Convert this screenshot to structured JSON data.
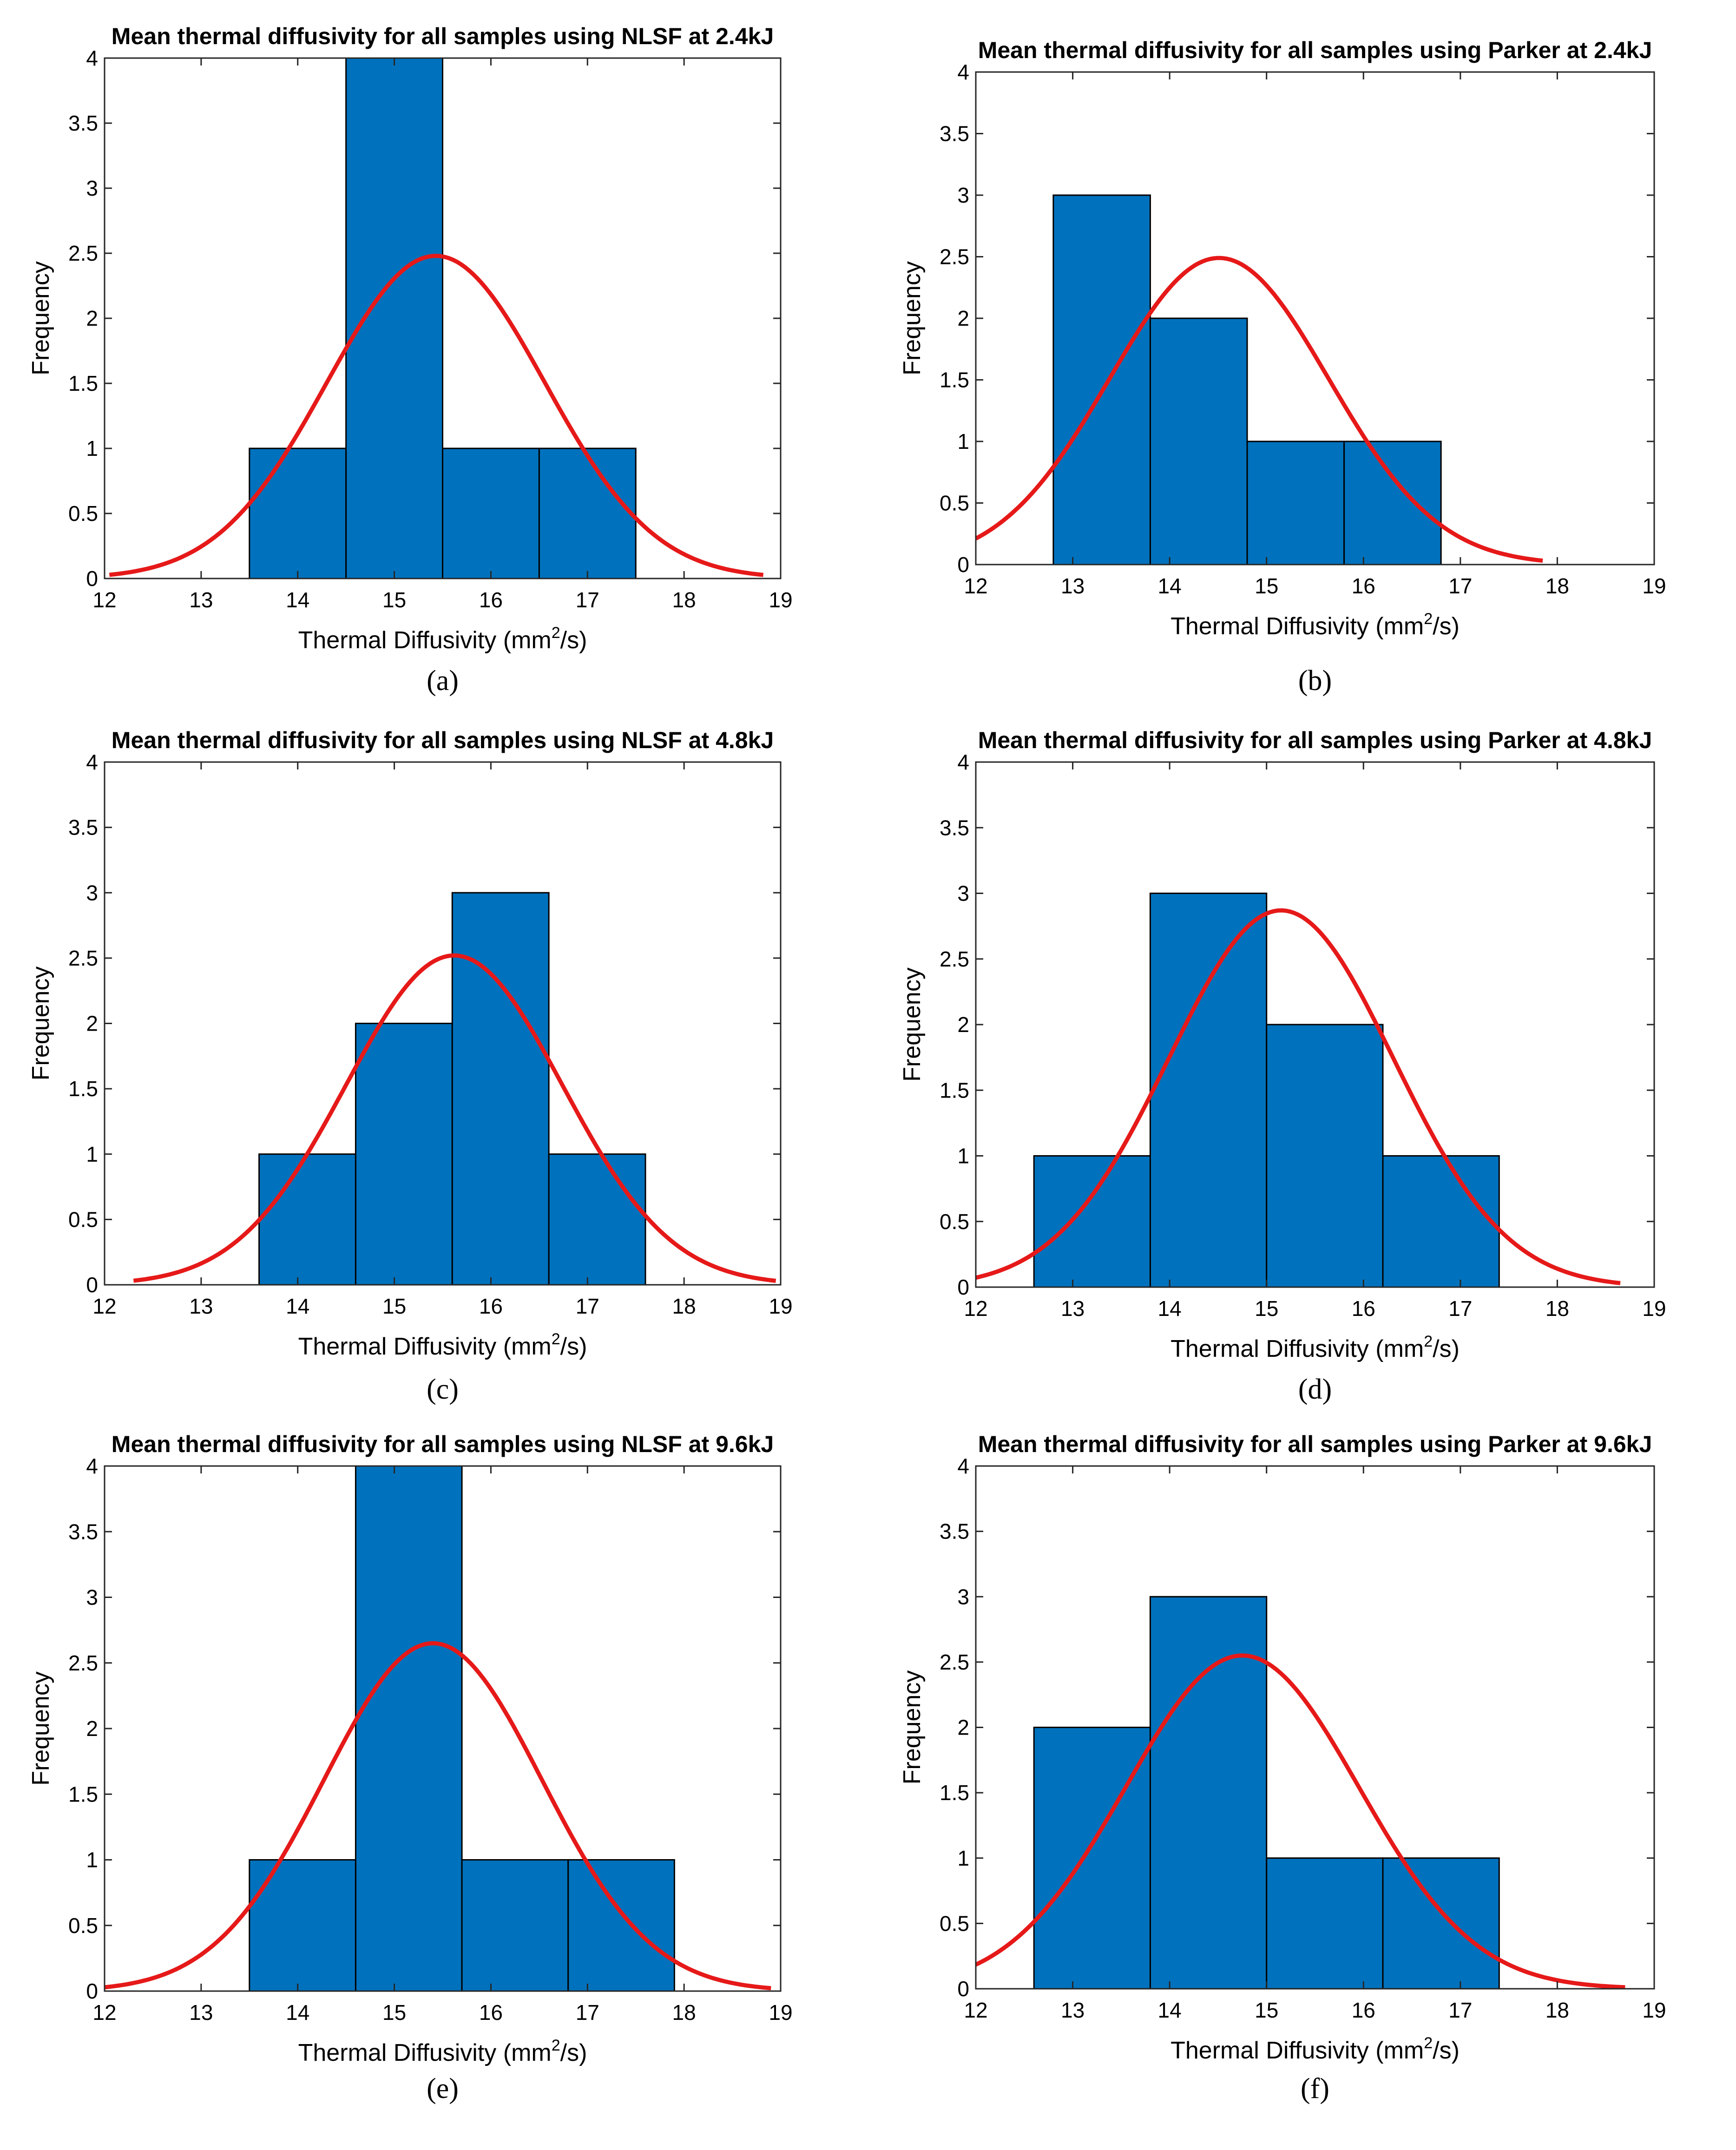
{
  "figure": {
    "bar_color": "#0072BD",
    "bar_edge_color": "#000000",
    "fit_color": "#E61919",
    "axis_color": "#262626"
  },
  "chart_data": [
    {
      "id": "a",
      "type": "bar",
      "subtype": "histogram-with-normal-fit",
      "caption": "(a)",
      "title": "Mean thermal diffusivity for all samples using NLSF at 2.4kJ",
      "xlabel": {
        "prefix": "Thermal Diffusivity (mm",
        "sup": "2",
        "suffix": "/s)"
      },
      "ylabel": "Frequency",
      "xlim": [
        12,
        19
      ],
      "ylim": [
        0,
        4
      ],
      "xticks": [
        "12",
        "13",
        "14",
        "15",
        "16",
        "17",
        "18",
        "19"
      ],
      "yticks": [
        "0",
        "0.5",
        "1",
        "1.5",
        "2",
        "2.5",
        "3",
        "3.5",
        "4"
      ],
      "bin_edges": [
        13.5,
        14.5,
        15.5,
        16.5,
        17.5
      ],
      "counts": [
        1,
        4,
        1,
        1
      ],
      "fit": {
        "peak": 2.48,
        "mean": 15.43,
        "sd": 1.13,
        "x_range": [
          12.05,
          18.82
        ]
      }
    },
    {
      "id": "b",
      "type": "bar",
      "subtype": "histogram-with-normal-fit",
      "caption": "(b)",
      "title": "Mean thermal diffusivity for all samples using Parker at 2.4kJ",
      "xlabel": {
        "prefix": "Thermal Diffusivity (mm",
        "sup": "2",
        "suffix": "/s)"
      },
      "ylabel": "Frequency",
      "xlim": [
        12,
        19
      ],
      "ylim": [
        0,
        4
      ],
      "xticks": [
        "12",
        "13",
        "14",
        "15",
        "16",
        "17",
        "18",
        "19"
      ],
      "yticks": [
        "0",
        "0.5",
        "1",
        "1.5",
        "2",
        "2.5",
        "3",
        "3.5",
        "4"
      ],
      "bin_edges": [
        12.8,
        13.8,
        14.8,
        15.8,
        16.8
      ],
      "counts": [
        3,
        2,
        1,
        1
      ],
      "fit": {
        "peak": 2.49,
        "mean": 14.51,
        "sd": 1.13,
        "x_range": [
          12.0,
          17.85
        ]
      }
    },
    {
      "id": "c",
      "type": "bar",
      "subtype": "histogram-with-normal-fit",
      "caption": "(c)",
      "title": "Mean thermal diffusivity for all samples using NLSF at 4.8kJ",
      "xlabel": {
        "prefix": "Thermal Diffusivity (mm",
        "sup": "2",
        "suffix": "/s)"
      },
      "ylabel": "Frequency",
      "xlim": [
        12,
        19
      ],
      "ylim": [
        0,
        4
      ],
      "xticks": [
        "12",
        "13",
        "14",
        "15",
        "16",
        "17",
        "18",
        "19"
      ],
      "yticks": [
        "0",
        "0.5",
        "1",
        "1.5",
        "2",
        "2.5",
        "3",
        "3.5",
        "4"
      ],
      "bin_edges": [
        13.6,
        14.6,
        15.6,
        16.6,
        17.6
      ],
      "counts": [
        1,
        2,
        3,
        1
      ],
      "fit": {
        "peak": 2.52,
        "mean": 15.62,
        "sd": 1.12,
        "x_range": [
          12.3,
          18.95
        ]
      }
    },
    {
      "id": "d",
      "type": "bar",
      "subtype": "histogram-with-normal-fit",
      "caption": "(d)",
      "title": "Mean thermal diffusivity for all samples using Parker at 4.8kJ",
      "xlabel": {
        "prefix": "Thermal Diffusivity (mm",
        "sup": "2",
        "suffix": "/s)"
      },
      "ylabel": "Frequency",
      "xlim": [
        12,
        19
      ],
      "ylim": [
        0,
        4
      ],
      "xticks": [
        "12",
        "13",
        "14",
        "15",
        "16",
        "17",
        "18",
        "19"
      ],
      "yticks": [
        "0",
        "0.5",
        "1",
        "1.5",
        "2",
        "2.5",
        "3",
        "3.5",
        "4"
      ],
      "bin_edges": [
        12.6,
        13.8,
        15.0,
        16.2,
        17.4
      ],
      "counts": [
        1,
        3,
        2,
        1
      ],
      "fit": {
        "peak": 2.87,
        "mean": 15.15,
        "sd": 1.16,
        "x_range": [
          12.0,
          18.65
        ]
      }
    },
    {
      "id": "e",
      "type": "bar",
      "subtype": "histogram-with-normal-fit",
      "caption": "(e)",
      "title": "Mean thermal diffusivity for all samples using NLSF at 9.6kJ",
      "xlabel": {
        "prefix": "Thermal Diffusivity (mm",
        "sup": "2",
        "suffix": "/s)"
      },
      "ylabel": "Frequency",
      "xlim": [
        12,
        19
      ],
      "ylim": [
        0,
        4
      ],
      "xticks": [
        "12",
        "13",
        "14",
        "15",
        "16",
        "17",
        "18",
        "19"
      ],
      "yticks": [
        "0",
        "0.5",
        "1",
        "1.5",
        "2",
        "2.5",
        "3",
        "3.5",
        "4"
      ],
      "bin_edges": [
        13.5,
        14.6,
        15.7,
        16.8,
        17.9
      ],
      "counts": [
        1,
        4,
        1,
        1
      ],
      "fit": {
        "peak": 2.65,
        "mean": 15.4,
        "sd": 1.13,
        "x_range": [
          12.0,
          18.9
        ]
      }
    },
    {
      "id": "f",
      "type": "bar",
      "subtype": "histogram-with-normal-fit",
      "caption": "(f)",
      "title": "Mean thermal diffusivity for all samples using Parker at 9.6kJ",
      "xlabel": {
        "prefix": "Thermal Diffusivity (mm",
        "sup": "2",
        "suffix": "/s)"
      },
      "ylabel": "Frequency",
      "xlim": [
        12,
        19
      ],
      "ylim": [
        0,
        4
      ],
      "xticks": [
        "12",
        "13",
        "14",
        "15",
        "16",
        "17",
        "18",
        "19"
      ],
      "yticks": [
        "0",
        "0.5",
        "1",
        "1.5",
        "2",
        "2.5",
        "3",
        "3.5",
        "4"
      ],
      "bin_edges": [
        12.6,
        13.8,
        15.0,
        16.2,
        17.4
      ],
      "counts": [
        2,
        3,
        1,
        1
      ],
      "fit": {
        "peak": 2.55,
        "mean": 14.75,
        "sd": 1.2,
        "x_range": [
          12.0,
          18.7
        ]
      }
    }
  ]
}
